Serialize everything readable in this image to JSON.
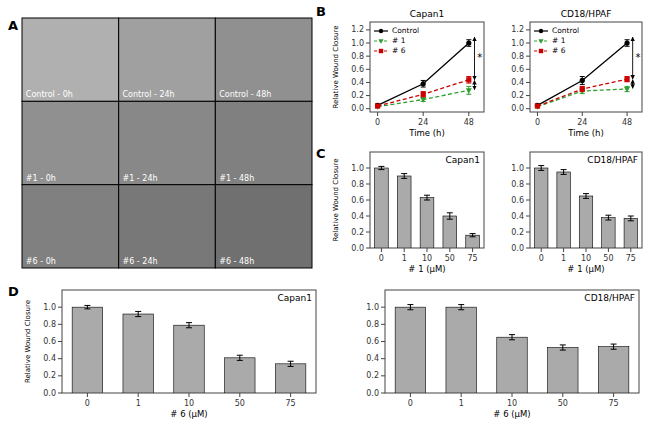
{
  "chart_data": [
    {
      "type": "tiles",
      "annotations": [
        {
          "text": "A"
        }
      ],
      "labels": [
        [
          "Control - 0h",
          "Control - 24h",
          "Control - 48h"
        ],
        [
          "#1 - 0h",
          "#1 - 24h",
          "#1 - 48h"
        ],
        [
          "#6 - 0h",
          "#6 - 24h",
          "#6 - 48h"
        ]
      ],
      "colors": [
        [
          "#b0b0b0",
          "#a0a0a0",
          "#909090"
        ],
        [
          "#909090",
          "#888888",
          "#808080"
        ],
        [
          "#808080",
          "#787878",
          "#707070"
        ]
      ]
    },
    {
      "type": "line",
      "title": "Capan1",
      "xlabel": "Time (h)",
      "ylabel": "Relative Wound Closure",
      "annotations": [
        {
          "text": "B"
        },
        {
          "text": "*",
          "x": 52.5,
          "y": 0.765
        }
      ],
      "arrows": [
        {
          "x": 51,
          "y": [
            1.09,
            0.44
          ]
        },
        {
          "x": 51,
          "y": [
            0.43,
            0.29
          ]
        }
      ],
      "x": [
        0,
        24,
        48
      ],
      "series": [
        {
          "name": "Control",
          "color": "#000000",
          "marker": "circle",
          "line_style": "solid",
          "values": [
            0.05,
            0.38,
            1.0
          ],
          "errors": [
            0.02,
            0.05,
            0.05
          ]
        },
        {
          "name": "# 1",
          "color": "#2ca02c",
          "marker": "triangle-down",
          "line_style": "dashed",
          "values": [
            0.03,
            0.14,
            0.28
          ],
          "errors": [
            0.01,
            0.03,
            0.06
          ]
        },
        {
          "name": "# 6",
          "color": "#cc0000",
          "marker": "square",
          "line_style": "dashed",
          "values": [
            0.04,
            0.22,
            0.44
          ],
          "errors": [
            0.01,
            0.04,
            0.05
          ]
        }
      ],
      "xlim": [
        -4,
        56
      ],
      "xticks": [
        0,
        24,
        48
      ],
      "ylim": [
        -0.05,
        1.32
      ],
      "yticks": [
        {
          "value": 0.0,
          "label": "0.0"
        },
        0.2,
        0.4,
        0.6,
        0.8,
        {
          "value": 1.0,
          "label": "1.0"
        },
        1.2
      ],
      "legend": "upper left"
    },
    {
      "type": "line",
      "title": "CD18/HPAF",
      "xlabel": "Time (h)",
      "annotations": [
        {
          "text": "*",
          "x": 52.5,
          "y": 0.77
        }
      ],
      "arrows": [
        {
          "x": 51,
          "y": [
            1.09,
            0.45
          ]
        },
        {
          "x": 51,
          "y": [
            0.44,
            0.31
          ]
        }
      ],
      "x": [
        0,
        24,
        48
      ],
      "series": [
        {
          "name": "Control",
          "color": "#000000",
          "marker": "circle",
          "line_style": "solid",
          "values": [
            0.05,
            0.43,
            1.0
          ],
          "errors": [
            0.02,
            0.06,
            0.05
          ]
        },
        {
          "name": "# 1",
          "color": "#2ca02c",
          "marker": "triangle-down",
          "line_style": "dashed",
          "values": [
            0.03,
            0.27,
            0.3
          ],
          "errors": [
            0.01,
            0.04,
            0.04
          ]
        },
        {
          "name": "# 6",
          "color": "#cc0000",
          "marker": "square",
          "line_style": "dashed",
          "values": [
            0.04,
            0.3,
            0.45
          ],
          "errors": [
            0.01,
            0.04,
            0.04
          ]
        }
      ],
      "xlim": [
        -4,
        56
      ],
      "xticks": [
        0,
        24,
        48
      ],
      "ylim": [
        -0.05,
        1.32
      ],
      "yticks": [
        {
          "value": 0.0,
          "label": "0.0"
        },
        0.2,
        0.4,
        0.6,
        0.8,
        {
          "value": 1.0,
          "label": "1.0"
        },
        1.2
      ],
      "legend": "upper left"
    },
    {
      "type": "bar",
      "title": "Capan1",
      "xlabel": "# 1 (μM)",
      "ylabel": "Relative Wound Closure",
      "annotations": [
        {
          "text": "C"
        }
      ],
      "categories": [
        "0",
        "1",
        "10",
        "50",
        "75"
      ],
      "values": [
        1.0,
        0.9,
        0.63,
        0.4,
        0.16
      ],
      "errors": [
        0.02,
        0.03,
        0.03,
        0.04,
        0.02
      ],
      "color": "#aaaaaa",
      "ylim": [
        0,
        1.2
      ],
      "yticks": [
        {
          "value": 0.0,
          "label": "0.0"
        },
        0.2,
        0.4,
        0.6,
        0.8,
        {
          "value": 1.0,
          "label": "1.0"
        }
      ]
    },
    {
      "type": "bar",
      "title": "CD18/HPAF",
      "xlabel": "# 1 (μM)",
      "categories": [
        "0",
        "1",
        "10",
        "50",
        "75"
      ],
      "values": [
        1.0,
        0.95,
        0.65,
        0.38,
        0.37
      ],
      "errors": [
        0.03,
        0.03,
        0.03,
        0.03,
        0.03
      ],
      "color": "#aaaaaa",
      "ylim": [
        0,
        1.2
      ],
      "yticks": [
        {
          "value": 0.0,
          "label": "0.0"
        },
        0.2,
        0.4,
        0.6,
        0.8,
        {
          "value": 1.0,
          "label": "1.0"
        }
      ]
    },
    {
      "type": "bar",
      "title": "Capan1",
      "xlabel": "# 6 (μM)",
      "ylabel": "Relative Wound Closure",
      "annotations": [
        {
          "text": "D"
        }
      ],
      "categories": [
        "0",
        "1",
        "10",
        "50",
        "75"
      ],
      "values": [
        1.0,
        0.92,
        0.79,
        0.41,
        0.34
      ],
      "errors": [
        0.02,
        0.03,
        0.03,
        0.03,
        0.03
      ],
      "color": "#aaaaaa",
      "ylim": [
        0,
        1.2
      ],
      "yticks": [
        {
          "value": 0.0,
          "label": "0.0"
        },
        0.2,
        0.4,
        0.6,
        0.8,
        {
          "value": 1.0,
          "label": "1.0"
        }
      ]
    },
    {
      "type": "bar",
      "title": "CD18/HPAF",
      "xlabel": "# 6 (μM)",
      "categories": [
        "0",
        "1",
        "10",
        "50",
        "75"
      ],
      "values": [
        1.0,
        1.0,
        0.65,
        0.53,
        0.54
      ],
      "errors": [
        0.03,
        0.03,
        0.03,
        0.03,
        0.03
      ],
      "color": "#aaaaaa",
      "ylim": [
        0,
        1.2
      ],
      "yticks": [
        {
          "value": 0.0,
          "label": "0.0"
        },
        0.2,
        0.4,
        0.6,
        0.8,
        {
          "value": 1.0,
          "label": "1.0"
        }
      ]
    }
  ]
}
